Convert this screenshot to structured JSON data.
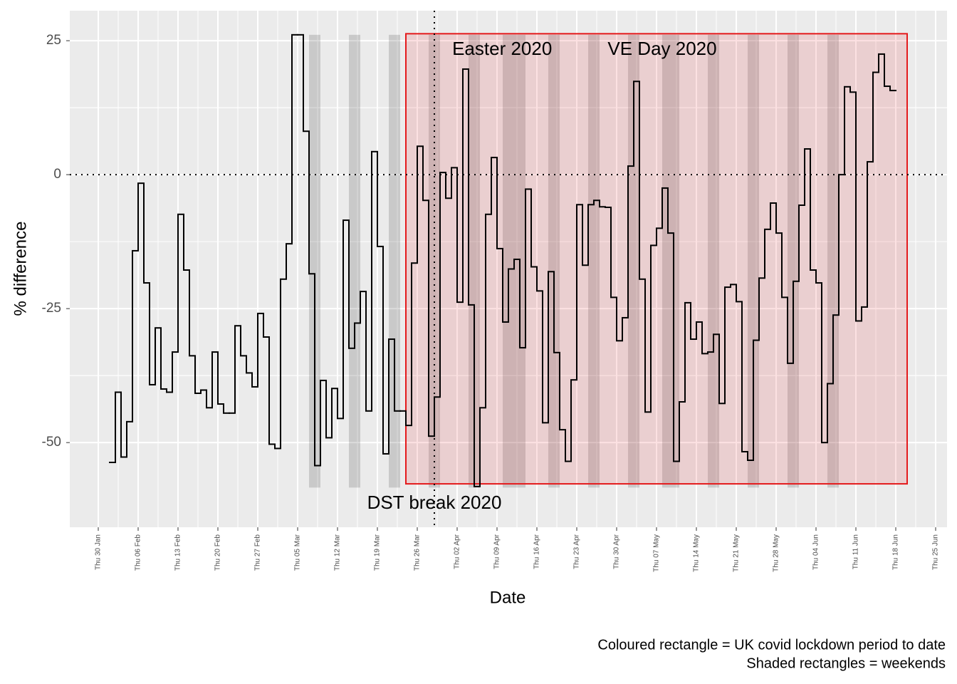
{
  "chart_data": {
    "type": "step",
    "xlabel": "Date",
    "ylabel": "% difference",
    "caption": [
      "Coloured rectangle = UK covid lockdown period to date",
      "Shaded rectangles = weekends"
    ],
    "xlim": [
      -5,
      149
    ],
    "ylim": [
      -65.8,
      30.6
    ],
    "yticks": [
      25,
      0,
      -25,
      -50
    ],
    "xticks": [
      {
        "value": 0,
        "label": "Thu 30 Jan"
      },
      {
        "value": 7,
        "label": "Thu 06 Feb"
      },
      {
        "value": 14,
        "label": "Thu 13 Feb"
      },
      {
        "value": 21,
        "label": "Thu 20 Feb"
      },
      {
        "value": 28,
        "label": "Thu 27 Feb"
      },
      {
        "value": 35,
        "label": "Thu 05 Mar"
      },
      {
        "value": 42,
        "label": "Thu 12 Mar"
      },
      {
        "value": 49,
        "label": "Thu 19 Mar"
      },
      {
        "value": 56,
        "label": "Thu 26 Mar"
      },
      {
        "value": 63,
        "label": "Thu 02 Apr"
      },
      {
        "value": 70,
        "label": "Thu 09 Apr"
      },
      {
        "value": 77,
        "label": "Thu 16 Apr"
      },
      {
        "value": 84,
        "label": "Thu 23 Apr"
      },
      {
        "value": 91,
        "label": "Thu 30 Apr"
      },
      {
        "value": 98,
        "label": "Thu 07 May"
      },
      {
        "value": 105,
        "label": "Thu 14 May"
      },
      {
        "value": 112,
        "label": "Thu 21 May"
      },
      {
        "value": 119,
        "label": "Thu 28 May"
      },
      {
        "value": 126,
        "label": "Thu 04 Jun"
      },
      {
        "value": 133,
        "label": "Thu 11 Jun"
      },
      {
        "value": 140,
        "label": "Thu 18 Jun"
      },
      {
        "value": 147,
        "label": "Thu 25 Jun"
      }
    ],
    "grid": true,
    "weekends": [
      [
        37,
        39
      ],
      [
        44,
        46
      ],
      [
        51,
        53
      ],
      [
        58,
        60
      ],
      [
        65,
        67
      ],
      [
        71,
        75
      ],
      [
        79,
        81
      ],
      [
        86,
        88
      ],
      [
        93,
        95
      ],
      [
        99,
        102
      ],
      [
        107,
        109
      ],
      [
        114,
        116
      ],
      [
        121,
        123
      ],
      [
        128,
        130
      ]
    ],
    "weekend_y": [
      -58.4,
      26.1
    ],
    "lockdown": {
      "x": [
        54,
        142
      ],
      "y": [
        -57.7,
        26.3
      ],
      "color": "#e41a1c"
    },
    "hline": 0,
    "vline": 59,
    "annotations": [
      {
        "text": "Easter 2020",
        "x": 70.9,
        "y": 23.3
      },
      {
        "text": "VE Day 2020",
        "x": 99,
        "y": 23.3
      },
      {
        "text": "DST break 2020",
        "x": 59,
        "y": -61.4
      }
    ],
    "color": "#000000",
    "x": [
      2,
      3,
      4,
      5,
      6,
      7,
      8,
      9,
      10,
      11,
      12,
      13,
      14,
      15,
      16,
      17,
      18,
      19,
      20,
      21,
      22,
      23,
      24,
      25,
      26,
      27,
      28,
      29,
      30,
      31,
      32,
      33,
      34,
      35,
      36,
      37,
      38,
      39,
      40,
      41,
      42,
      43,
      44,
      45,
      46,
      47,
      48,
      49,
      50,
      51,
      52,
      53,
      54,
      55,
      56,
      57,
      58,
      59,
      60,
      61,
      62,
      63,
      64,
      65,
      66,
      67,
      68,
      69,
      70,
      71,
      72,
      73,
      74,
      75,
      76,
      77,
      78,
      79,
      80,
      81,
      82,
      83,
      84,
      85,
      86,
      87,
      88,
      89,
      90,
      91,
      92,
      93,
      94,
      95,
      96,
      97,
      98,
      99,
      100,
      101,
      102,
      103,
      104,
      105,
      106,
      107,
      108,
      109,
      110,
      111,
      112,
      113,
      114,
      115,
      116,
      117,
      118,
      119,
      120,
      121,
      122,
      123,
      124,
      125,
      126,
      127,
      128,
      129,
      130,
      131,
      132,
      133,
      134,
      135,
      136,
      137,
      138,
      139
    ],
    "values": [
      -53.7,
      -40.6,
      -52.7,
      -46.1,
      -14.2,
      -1.6,
      -20.2,
      -39.2,
      -28.6,
      -40.0,
      -40.6,
      -33.1,
      -7.4,
      -17.8,
      -33.8,
      -40.8,
      -40.2,
      -43.5,
      -33.1,
      -42.8,
      -44.5,
      -44.5,
      -28.2,
      -33.8,
      -37.0,
      -39.6,
      -25.9,
      -30.3,
      -50.3,
      -51.1,
      -19.5,
      -12.9,
      26.1,
      26.1,
      8.1,
      -18.5,
      -54.3,
      -38.4,
      -49.1,
      -39.9,
      -45.5,
      -8.5,
      -32.4,
      -27.7,
      -21.8,
      -44.1,
      4.3,
      -13.4,
      -52.1,
      -30.7,
      -44.1,
      -44.1,
      -46.8,
      -16.5,
      5.3,
      -4.8,
      -48.8,
      -41.5,
      0.4,
      -4.4,
      1.3,
      -23.8,
      19.7,
      -24.3,
      -58.2,
      -43.5,
      -7.4,
      3.2,
      -13.8,
      -27.5,
      -17.6,
      -15.8,
      -32.3,
      -2.7,
      -17.2,
      -21.7,
      -46.3,
      -18.1,
      -33.2,
      -47.6,
      -53.5,
      -38.3,
      -5.6,
      -16.9,
      -5.6,
      -4.8,
      -6.0,
      -6.1,
      -22.9,
      -31.0,
      -26.7,
      1.6,
      17.4,
      -19.5,
      -44.3,
      -13.2,
      -10.0,
      -2.5,
      -10.9,
      -53.5,
      -42.4,
      -23.9,
      -30.7,
      -27.5,
      -33.4,
      -33.1,
      -29.8,
      -42.7,
      -21.0,
      -20.5,
      -23.7,
      -51.7,
      -53.3,
      -30.9,
      -19.3,
      -10.2,
      -5.3,
      -10.9,
      -22.9,
      -35.2,
      -19.9,
      -5.7,
      4.8,
      -17.8,
      -20.2,
      -50.0,
      -39.0,
      -26.2,
      0.0,
      16.4,
      15.4,
      -27.3,
      -24.7,
      2.4,
      19.1,
      22.5,
      16.5,
      15.7
    ]
  }
}
